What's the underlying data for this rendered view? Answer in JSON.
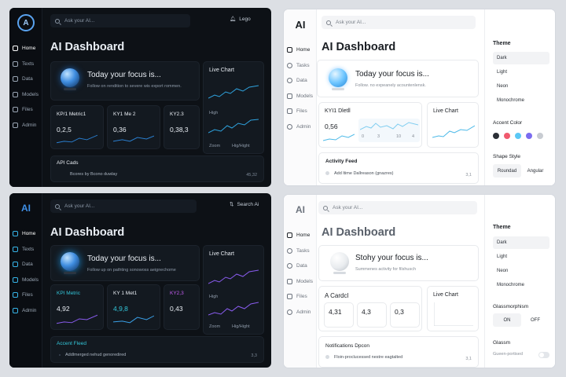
{
  "panels": {
    "p1": {
      "logo": "A",
      "nav": [
        "Home",
        "Texts",
        "Data",
        "Models",
        "Files",
        "Admin"
      ],
      "search_placeholder": "Ask your AI...",
      "top_button": "Lego",
      "title": "AI Dashboard",
      "focus_title": "Today your focus is...",
      "focus_sub": "Follow on rendition to severe wis export rommen.",
      "metrics": [
        {
          "label": "KP/1 Metric1",
          "value": "0,2,5"
        },
        {
          "label": "KY1 Me 2",
          "value": "0,36"
        },
        {
          "label": "KY2.3",
          "value": "0,38,3"
        }
      ],
      "live_chart": {
        "title": "Live Chart",
        "label1": "High",
        "label2": "Zoom",
        "label3": "Hig/Hight"
      },
      "section": {
        "title": "API Cads",
        "row": "Bcores by Bcono duwlay",
        "count": "45,32"
      }
    },
    "p2": {
      "logo": "AI",
      "nav": [
        "Home",
        "Texts",
        "Data",
        "Models",
        "Files",
        "Admin"
      ],
      "search_placeholder": "Ask your AI...",
      "top_button": "Search Ai",
      "title": "AI Dashboard",
      "focus_title": "Today your focus is...",
      "focus_sub": "Follow up on pathting sonowoss aeignechome",
      "metrics": [
        {
          "label": "KPI Metric",
          "value": "4,92"
        },
        {
          "label": "KY 1 Met1",
          "value": "4,9,8"
        },
        {
          "label": "KY2,3",
          "value": "0,43"
        }
      ],
      "live_chart": {
        "title": "Live Chart",
        "label1": "High",
        "label2": "Zoom",
        "label3": "Hig/Hight"
      },
      "section": {
        "title": "Accent Fleed",
        "row": "Addlmerged nehud genoredired",
        "count": "3,3"
      }
    },
    "p3": {
      "logo": "AI",
      "nav": [
        "Home",
        "Tasks",
        "Data",
        "Models",
        "Files",
        "Admin"
      ],
      "search_placeholder": "Ask your AI...",
      "title": "AI Dashboard",
      "focus_title": "Today your focus is...",
      "focus_sub": "Follow. no expeanely acountenlensk.",
      "metric_card": {
        "label": "KYI1 Dletll",
        "value": "0,56",
        "ticks": [
          "0",
          "3",
          "10",
          "4"
        ]
      },
      "live_chart": {
        "title": "Live Chart"
      },
      "section": {
        "title": "Activity Feed",
        "row": "Add ltime Dallreason (gnazres)",
        "count": "3,1"
      },
      "right_panel": {
        "theme_title": "Theme",
        "theme_options": [
          "Dark",
          "Light",
          "Neon",
          "Monochrome"
        ],
        "accent_title": "Accent Color",
        "accent_colors": [
          "#2b2f36",
          "#f05a6e",
          "#5bc8f5",
          "#7b6cf0",
          "#c8ccd2"
        ],
        "shape_title": "Shape Style",
        "shape_options": [
          "Roundad",
          "Angular"
        ]
      }
    },
    "p4": {
      "logo": "AI",
      "nav": [
        "Home",
        "Tasks",
        "Data",
        "Models",
        "Files",
        "Admin"
      ],
      "search_placeholder": "Ask your AI...",
      "title": "AI Dashboard",
      "focus_title": "Stohy your focus is...",
      "focus_sub": "Summenes activity for filshusch",
      "cards_label": "A Cardcl",
      "metric_values": [
        "4,31",
        "4,3",
        "0,3"
      ],
      "live_chart": {
        "title": "Live Chart"
      },
      "section": {
        "title": "Notifications Dpcon",
        "row": "Floin-proclucessed nestre eagtalted",
        "count": "3,1"
      },
      "right_panel": {
        "theme_title": "Theme",
        "theme_options": [
          "Dark",
          "Light",
          "Neon",
          "Monochrome"
        ],
        "glass_title": "Glassmorphism",
        "glass_options": [
          "ON",
          "OFF"
        ],
        "glass2_title": "Glassm",
        "glass2_row": "Gueen-portised"
      }
    }
  }
}
